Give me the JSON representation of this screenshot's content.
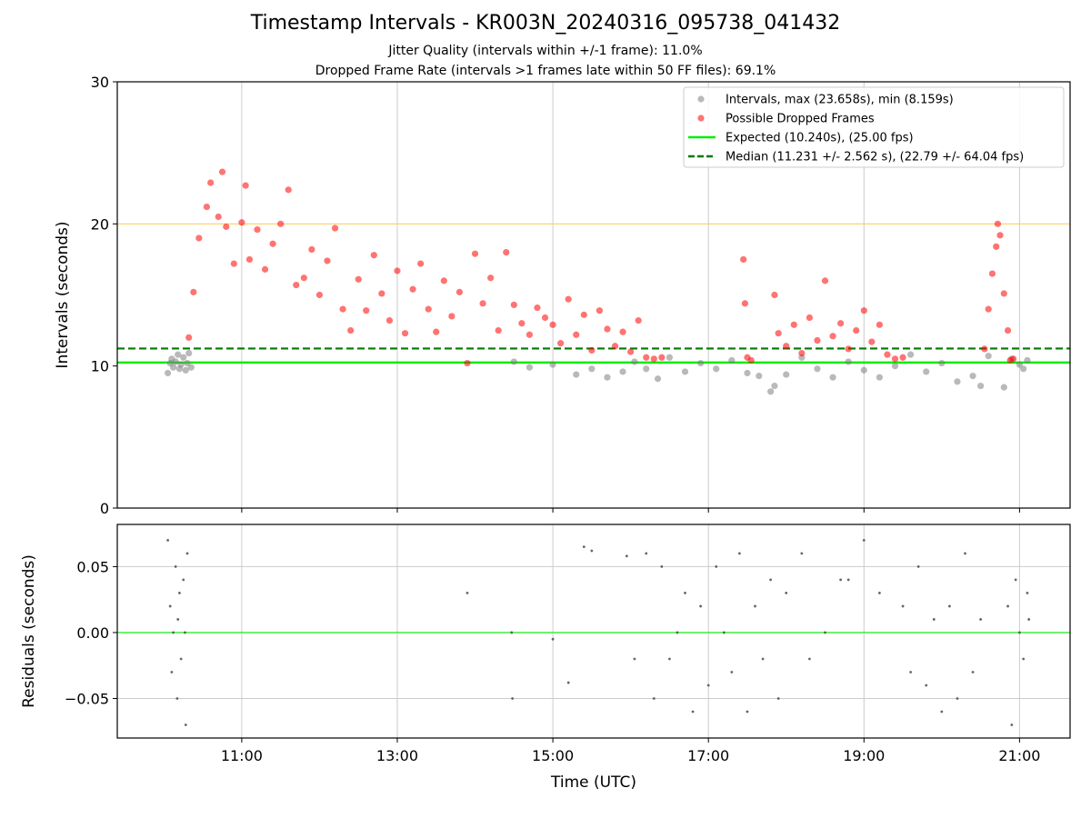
{
  "chart_data": [
    {
      "type": "scatter",
      "title": "Timestamp Intervals - KR003N_20240316_095738_041432",
      "subtitle_lines": [
        "Jitter Quality (intervals within +/-1 frame): 11.0%",
        "Dropped Frame Rate (intervals >1 frames late within 50 FF files): 69.1%"
      ],
      "xlabel": "",
      "ylabel": "Intervals (seconds)",
      "x_axis": "time_utc_hours",
      "xlim": [
        9.4,
        21.65
      ],
      "ylim": [
        0,
        30
      ],
      "yticks": [
        0,
        10,
        20,
        30
      ],
      "xticks": [
        11,
        13,
        15,
        17,
        19,
        21
      ],
      "xtick_labels": [
        "11:00",
        "13:00",
        "15:00",
        "17:00",
        "19:00",
        "21:00"
      ],
      "grid": "x",
      "legend_position": "top-right",
      "reference_lines": [
        {
          "name": "Expected (10.240s), (25.00 fps)",
          "y": 10.24,
          "color": "#00ee00",
          "style": "solid"
        },
        {
          "name": "Median (11.231 +/- 2.562 s), (22.79 +/- 64.04 fps)",
          "y": 11.231,
          "color": "#007a00",
          "style": "dashed"
        },
        {
          "y": 20,
          "color": "#ffcc66",
          "style": "solid"
        }
      ],
      "series": [
        {
          "name": "Intervals, max (23.658s), min (8.159s)",
          "color": "#808080",
          "points": [
            [
              10.05,
              9.5
            ],
            [
              10.08,
              10.2
            ],
            [
              10.1,
              10.5
            ],
            [
              10.12,
              9.9
            ],
            [
              10.15,
              10.3
            ],
            [
              10.18,
              10.8
            ],
            [
              10.2,
              9.8
            ],
            [
              10.22,
              10.1
            ],
            [
              10.25,
              10.6
            ],
            [
              10.28,
              9.7
            ],
            [
              10.3,
              10.2
            ],
            [
              10.32,
              10.9
            ],
            [
              10.35,
              9.9
            ],
            [
              14.5,
              10.3
            ],
            [
              14.7,
              9.9
            ],
            [
              15.0,
              10.1
            ],
            [
              15.3,
              9.4
            ],
            [
              15.5,
              9.8
            ],
            [
              15.7,
              9.2
            ],
            [
              15.9,
              9.6
            ],
            [
              16.05,
              10.3
            ],
            [
              16.2,
              9.8
            ],
            [
              16.35,
              9.1
            ],
            [
              16.5,
              10.6
            ],
            [
              16.7,
              9.6
            ],
            [
              16.9,
              10.2
            ],
            [
              17.1,
              9.8
            ],
            [
              17.3,
              10.4
            ],
            [
              17.5,
              9.5
            ],
            [
              17.65,
              9.3
            ],
            [
              17.8,
              8.2
            ],
            [
              17.85,
              8.6
            ],
            [
              18.0,
              9.4
            ],
            [
              18.2,
              10.6
            ],
            [
              18.4,
              9.8
            ],
            [
              18.6,
              9.2
            ],
            [
              18.8,
              10.3
            ],
            [
              19.0,
              9.7
            ],
            [
              19.2,
              9.2
            ],
            [
              19.4,
              10.0
            ],
            [
              19.6,
              10.8
            ],
            [
              19.8,
              9.6
            ],
            [
              20.0,
              10.2
            ],
            [
              20.2,
              8.9
            ],
            [
              20.4,
              9.3
            ],
            [
              20.5,
              8.6
            ],
            [
              20.6,
              10.7
            ],
            [
              20.8,
              8.5
            ],
            [
              20.9,
              10.5
            ],
            [
              21.0,
              10.1
            ],
            [
              21.05,
              9.8
            ],
            [
              21.1,
              10.4
            ]
          ]
        },
        {
          "name": "Possible Dropped Frames",
          "color": "#ff0000",
          "points": [
            [
              10.32,
              12.0
            ],
            [
              10.38,
              15.2
            ],
            [
              10.45,
              19.0
            ],
            [
              10.55,
              21.2
            ],
            [
              10.6,
              22.9
            ],
            [
              10.7,
              20.5
            ],
            [
              10.75,
              23.66
            ],
            [
              10.8,
              19.8
            ],
            [
              10.9,
              17.2
            ],
            [
              11.0,
              20.1
            ],
            [
              11.05,
              22.7
            ],
            [
              11.1,
              17.5
            ],
            [
              11.2,
              19.6
            ],
            [
              11.3,
              16.8
            ],
            [
              11.4,
              18.6
            ],
            [
              11.5,
              20.0
            ],
            [
              11.6,
              22.4
            ],
            [
              11.7,
              15.7
            ],
            [
              11.8,
              16.2
            ],
            [
              11.9,
              18.2
            ],
            [
              12.0,
              15.0
            ],
            [
              12.1,
              17.4
            ],
            [
              12.2,
              19.7
            ],
            [
              12.3,
              14.0
            ],
            [
              12.4,
              12.5
            ],
            [
              12.5,
              16.1
            ],
            [
              12.6,
              13.9
            ],
            [
              12.7,
              17.8
            ],
            [
              12.8,
              15.1
            ],
            [
              12.9,
              13.2
            ],
            [
              13.0,
              16.7
            ],
            [
              13.1,
              12.3
            ],
            [
              13.2,
              15.4
            ],
            [
              13.3,
              17.2
            ],
            [
              13.4,
              14.0
            ],
            [
              13.5,
              12.4
            ],
            [
              13.6,
              16.0
            ],
            [
              13.7,
              13.5
            ],
            [
              13.8,
              15.2
            ],
            [
              13.9,
              10.2
            ],
            [
              14.0,
              17.9
            ],
            [
              14.1,
              14.4
            ],
            [
              14.2,
              16.2
            ],
            [
              14.3,
              12.5
            ],
            [
              14.4,
              18.0
            ],
            [
              14.5,
              14.3
            ],
            [
              14.6,
              13.0
            ],
            [
              14.7,
              12.2
            ],
            [
              14.8,
              14.1
            ],
            [
              14.9,
              13.4
            ],
            [
              15.0,
              12.9
            ],
            [
              15.1,
              11.6
            ],
            [
              15.2,
              14.7
            ],
            [
              15.3,
              12.2
            ],
            [
              15.4,
              13.6
            ],
            [
              15.5,
              11.1
            ],
            [
              15.6,
              13.9
            ],
            [
              15.7,
              12.6
            ],
            [
              15.8,
              11.4
            ],
            [
              15.9,
              12.4
            ],
            [
              16.0,
              11.0
            ],
            [
              16.1,
              13.2
            ],
            [
              16.2,
              10.6
            ],
            [
              16.3,
              10.5
            ],
            [
              16.4,
              10.6
            ],
            [
              17.45,
              17.5
            ],
            [
              17.47,
              14.4
            ],
            [
              17.5,
              10.6
            ],
            [
              17.55,
              10.4
            ],
            [
              17.85,
              15.0
            ],
            [
              17.9,
              12.3
            ],
            [
              18.0,
              11.4
            ],
            [
              18.1,
              12.9
            ],
            [
              18.2,
              10.9
            ],
            [
              18.3,
              13.4
            ],
            [
              18.4,
              11.8
            ],
            [
              18.5,
              16.0
            ],
            [
              18.6,
              12.1
            ],
            [
              18.7,
              13.0
            ],
            [
              18.8,
              11.2
            ],
            [
              18.9,
              12.5
            ],
            [
              19.0,
              13.9
            ],
            [
              19.1,
              11.7
            ],
            [
              19.2,
              12.9
            ],
            [
              19.3,
              10.8
            ],
            [
              19.4,
              10.5
            ],
            [
              19.5,
              10.6
            ],
            [
              20.55,
              11.2
            ],
            [
              20.6,
              14.0
            ],
            [
              20.65,
              16.5
            ],
            [
              20.7,
              18.4
            ],
            [
              20.72,
              20.0
            ],
            [
              20.75,
              19.2
            ],
            [
              20.8,
              15.1
            ],
            [
              20.85,
              12.5
            ],
            [
              20.88,
              10.4
            ],
            [
              20.92,
              10.5
            ]
          ]
        }
      ]
    },
    {
      "type": "scatter",
      "ylabel": "Residuals (seconds)",
      "xlabel": "Time (UTC)",
      "xlim": [
        9.4,
        21.65
      ],
      "ylim": [
        -0.08,
        0.082
      ],
      "yticks": [
        -0.05,
        0.0,
        0.05
      ],
      "ytick_labels": [
        "−0.05",
        "0.00",
        "0.05"
      ],
      "xticks": [
        11,
        13,
        15,
        17,
        19,
        21
      ],
      "xtick_labels": [
        "11:00",
        "13:00",
        "15:00",
        "17:00",
        "19:00",
        "21:00"
      ],
      "grid": "both",
      "reference_lines": [
        {
          "y": 0.0,
          "color": "#00ee00",
          "style": "solid"
        }
      ],
      "series": [
        {
          "color": "#555555",
          "points": [
            [
              10.05,
              0.07
            ],
            [
              10.08,
              0.02
            ],
            [
              10.1,
              -0.03
            ],
            [
              10.12,
              0.0
            ],
            [
              10.15,
              0.05
            ],
            [
              10.17,
              -0.05
            ],
            [
              10.18,
              0.01
            ],
            [
              10.2,
              0.03
            ],
            [
              10.22,
              -0.02
            ],
            [
              10.25,
              0.04
            ],
            [
              10.27,
              0.0
            ],
            [
              10.28,
              -0.07
            ],
            [
              10.3,
              0.06
            ],
            [
              13.9,
              0.03
            ],
            [
              14.47,
              0.0
            ],
            [
              14.48,
              -0.05
            ],
            [
              15.0,
              -0.005
            ],
            [
              15.2,
              -0.038
            ],
            [
              15.4,
              0.065
            ],
            [
              15.5,
              0.062
            ],
            [
              15.95,
              0.058
            ],
            [
              16.05,
              -0.02
            ],
            [
              16.2,
              0.06
            ],
            [
              16.3,
              -0.05
            ],
            [
              16.4,
              0.05
            ],
            [
              16.5,
              -0.02
            ],
            [
              16.6,
              0.0
            ],
            [
              16.7,
              0.03
            ],
            [
              16.8,
              -0.06
            ],
            [
              16.9,
              0.02
            ],
            [
              17.0,
              -0.04
            ],
            [
              17.1,
              0.05
            ],
            [
              17.2,
              0.0
            ],
            [
              17.3,
              -0.03
            ],
            [
              17.4,
              0.06
            ],
            [
              17.5,
              -0.06
            ],
            [
              17.6,
              0.02
            ],
            [
              17.7,
              -0.02
            ],
            [
              17.8,
              0.04
            ],
            [
              17.9,
              -0.05
            ],
            [
              18.0,
              0.03
            ],
            [
              18.2,
              0.06
            ],
            [
              18.3,
              -0.02
            ],
            [
              18.5,
              0.0
            ],
            [
              18.7,
              0.04
            ],
            [
              18.8,
              0.04
            ],
            [
              19.0,
              0.07
            ],
            [
              19.2,
              0.03
            ],
            [
              19.5,
              0.02
            ],
            [
              19.6,
              -0.03
            ],
            [
              19.7,
              0.05
            ],
            [
              19.8,
              -0.04
            ],
            [
              19.9,
              0.01
            ],
            [
              20.0,
              -0.06
            ],
            [
              20.1,
              0.02
            ],
            [
              20.2,
              -0.05
            ],
            [
              20.3,
              0.06
            ],
            [
              20.4,
              -0.03
            ],
            [
              20.5,
              0.01
            ],
            [
              20.85,
              0.02
            ],
            [
              20.9,
              -0.07
            ],
            [
              20.95,
              0.04
            ],
            [
              21.0,
              0.0
            ],
            [
              21.05,
              -0.02
            ],
            [
              21.1,
              0.03
            ],
            [
              21.12,
              0.01
            ]
          ]
        }
      ]
    }
  ]
}
